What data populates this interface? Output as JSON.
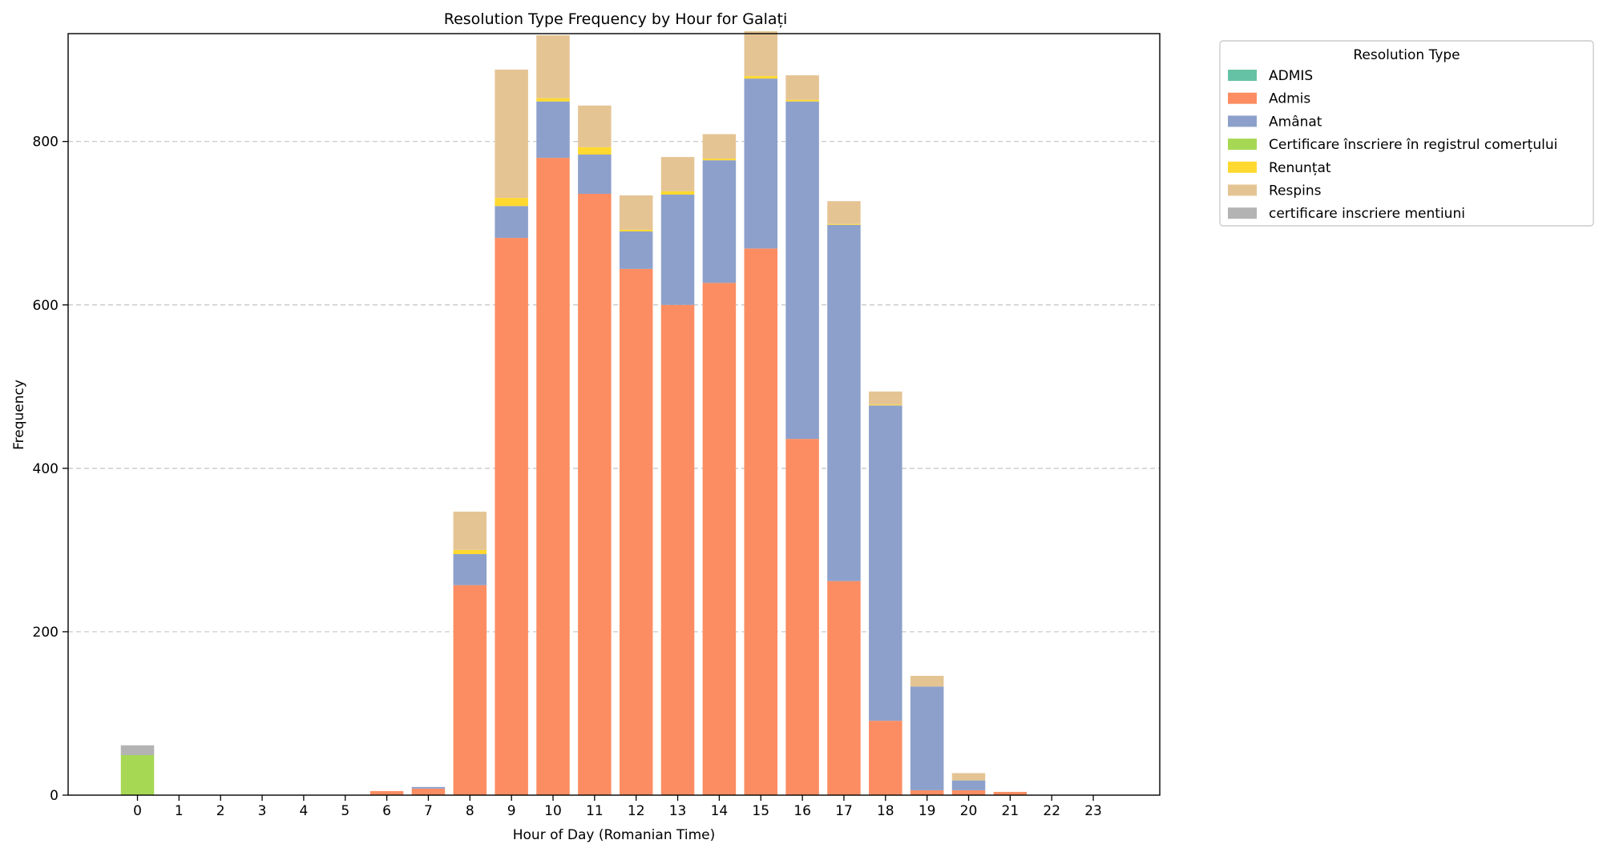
{
  "chart_data": {
    "type": "bar",
    "stacked": true,
    "title": "Resolution Type Frequency by Hour for Galați",
    "xlabel": "Hour of Day (Romanian Time)",
    "ylabel": "Frequency",
    "ylim": [
      0,
      932
    ],
    "yticks": [
      0,
      200,
      400,
      600,
      800
    ],
    "grid": "y-dashed",
    "legend": {
      "title": "Resolution Type",
      "placement": "outside-top-right"
    },
    "categories": [
      "0",
      "1",
      "2",
      "3",
      "4",
      "5",
      "6",
      "7",
      "8",
      "9",
      "10",
      "11",
      "12",
      "13",
      "14",
      "15",
      "16",
      "17",
      "18",
      "19",
      "20",
      "21",
      "22",
      "23"
    ],
    "series": [
      {
        "name": "ADMIS",
        "color": "#66c2a5",
        "values": [
          0,
          0,
          0,
          0,
          0,
          0,
          0,
          0,
          0,
          0,
          0,
          0,
          0,
          0,
          0,
          0,
          0,
          0,
          0,
          0,
          0,
          0,
          0,
          0
        ]
      },
      {
        "name": "Admis",
        "color": "#fc8d62",
        "values": [
          0,
          0,
          0,
          0,
          0,
          0,
          5,
          8,
          257,
          682,
          780,
          736,
          644,
          600,
          627,
          669,
          436,
          262,
          91,
          6,
          6,
          4,
          0,
          0
        ]
      },
      {
        "name": "Amânat",
        "color": "#8da0cb",
        "values": [
          0,
          0,
          0,
          0,
          0,
          0,
          0,
          2,
          38,
          39,
          69,
          48,
          46,
          135,
          150,
          208,
          413,
          436,
          386,
          127,
          12,
          0,
          0,
          0
        ]
      },
      {
        "name": "Certificare înscriere în registrul comerțului",
        "color": "#a6d854",
        "values": [
          49,
          0,
          0,
          0,
          0,
          0,
          0,
          0,
          0,
          0,
          0,
          0,
          0,
          0,
          0,
          0,
          0,
          0,
          0,
          0,
          0,
          0,
          0,
          0
        ]
      },
      {
        "name": "Renunțat",
        "color": "#ffd92f",
        "values": [
          0,
          0,
          0,
          0,
          0,
          0,
          0,
          0,
          5,
          10,
          4,
          9,
          2,
          4,
          2,
          3,
          2,
          1,
          1,
          0,
          0,
          0,
          0,
          0
        ]
      },
      {
        "name": "Respins",
        "color": "#e5c494",
        "values": [
          0,
          0,
          0,
          0,
          0,
          0,
          0,
          0,
          47,
          157,
          77,
          51,
          42,
          42,
          30,
          55,
          30,
          28,
          16,
          13,
          9,
          0,
          0,
          0
        ]
      },
      {
        "name": "certificare inscriere mentiuni",
        "color": "#b3b3b3",
        "values": [
          12,
          0,
          0,
          0,
          0,
          0,
          0,
          0,
          0,
          0,
          0,
          0,
          0,
          0,
          0,
          0,
          0,
          0,
          0,
          0,
          0,
          0,
          0,
          0
        ]
      }
    ]
  }
}
